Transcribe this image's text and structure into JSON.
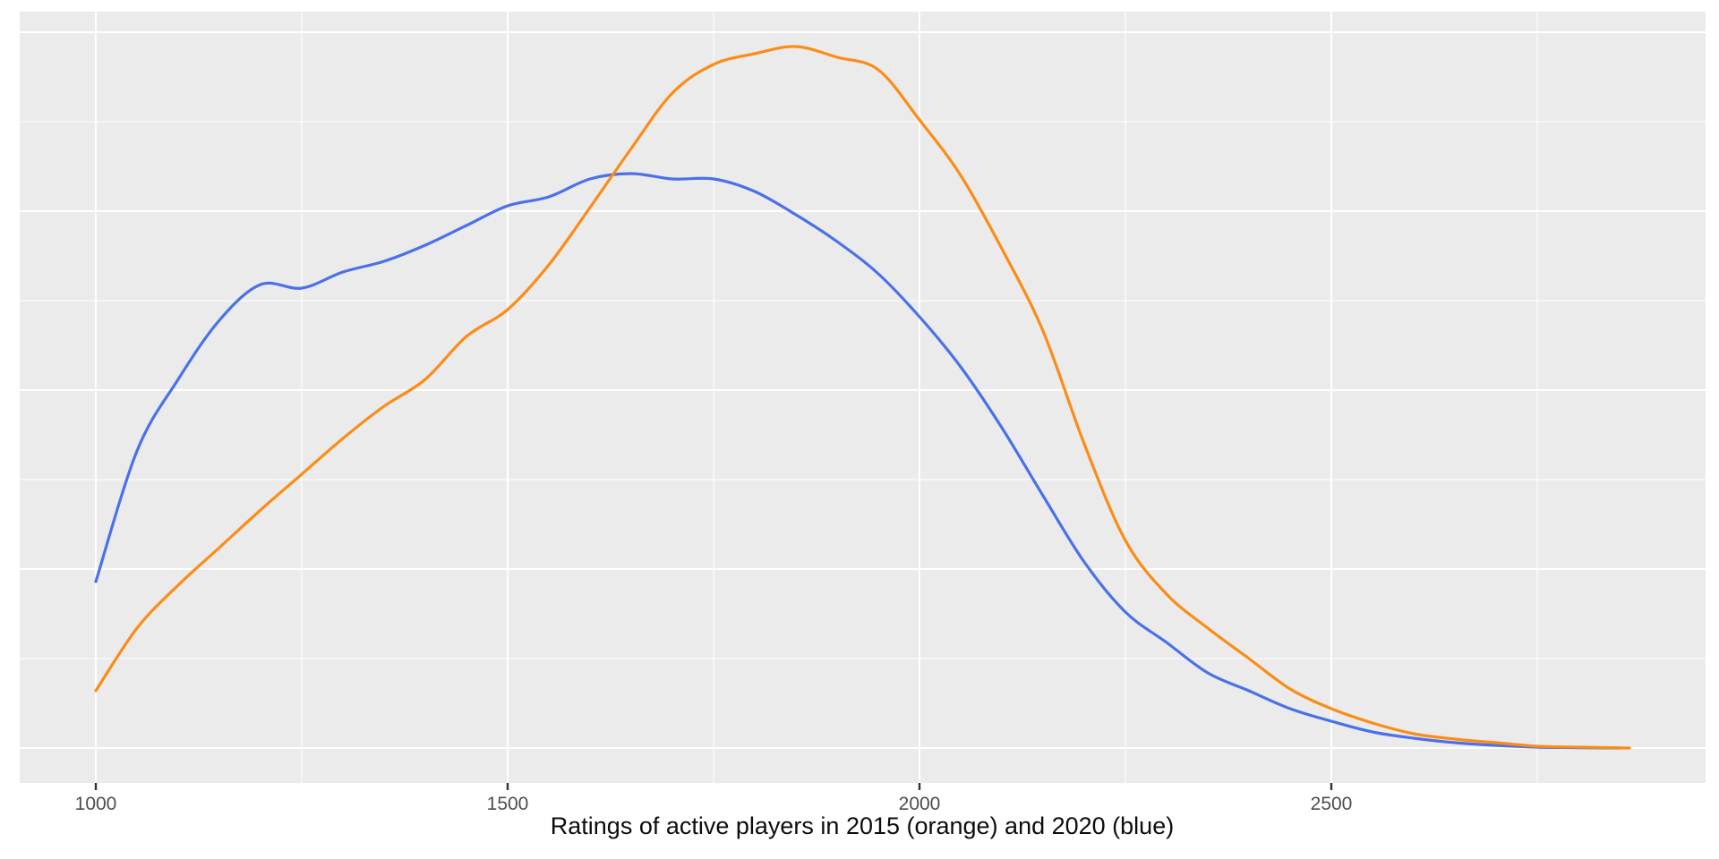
{
  "chart_data": {
    "type": "line",
    "title": "",
    "xlabel": "Ratings of active players in 2015 (orange) and 2020 (blue)",
    "ylabel": "",
    "x_ticks": [
      1000,
      1500,
      2000,
      2500
    ],
    "x_domain": [
      908,
      2955
    ],
    "y_domain": [
      -0.195,
      4.115
    ],
    "x_gridlines_minor": [
      1250,
      1750,
      2250,
      2750
    ],
    "y_gridlines_major": [
      0,
      1,
      2,
      3,
      4
    ],
    "y_gridlines_minor": [
      0.5,
      1.5,
      2.5,
      3.5
    ],
    "grid": true,
    "legend_position": "none",
    "y_units": "density, arbitrary units (1 = one major gridline; no y-axis labels shown)",
    "series": [
      {
        "name": "2015",
        "color": "#FB8C17",
        "x": [
          1000,
          1050,
          1100,
          1150,
          1200,
          1250,
          1300,
          1350,
          1400,
          1450,
          1500,
          1550,
          1600,
          1650,
          1700,
          1750,
          1800,
          1850,
          1900,
          1950,
          2000,
          2050,
          2100,
          2150,
          2200,
          2250,
          2300,
          2350,
          2400,
          2450,
          2500,
          2550,
          2600,
          2650,
          2700,
          2750,
          2800,
          2862
        ],
        "y": [
          0.32,
          0.67,
          0.91,
          1.12,
          1.33,
          1.53,
          1.73,
          1.91,
          2.06,
          2.3,
          2.45,
          2.7,
          3.02,
          3.35,
          3.66,
          3.82,
          3.88,
          3.92,
          3.86,
          3.79,
          3.51,
          3.2,
          2.79,
          2.33,
          1.7,
          1.16,
          0.86,
          0.67,
          0.5,
          0.33,
          0.22,
          0.14,
          0.08,
          0.05,
          0.03,
          0.01,
          0.005,
          0.0
        ]
      },
      {
        "name": "2020",
        "color": "#4B71E8",
        "x": [
          1000,
          1050,
          1100,
          1150,
          1200,
          1250,
          1300,
          1350,
          1400,
          1450,
          1500,
          1550,
          1600,
          1650,
          1700,
          1750,
          1800,
          1850,
          1900,
          1950,
          2000,
          2050,
          2100,
          2150,
          2200,
          2250,
          2300,
          2350,
          2400,
          2450,
          2500,
          2550,
          2600,
          2650,
          2700,
          2750,
          2800,
          2850
        ],
        "y": [
          0.93,
          1.66,
          2.06,
          2.39,
          2.59,
          2.57,
          2.66,
          2.72,
          2.81,
          2.92,
          3.03,
          3.08,
          3.18,
          3.21,
          3.18,
          3.18,
          3.11,
          2.98,
          2.83,
          2.65,
          2.41,
          2.13,
          1.79,
          1.41,
          1.04,
          0.76,
          0.59,
          0.42,
          0.32,
          0.22,
          0.15,
          0.09,
          0.055,
          0.03,
          0.015,
          0.005,
          0.002,
          0.0
        ]
      }
    ]
  },
  "styles": {
    "panel_bg": "#EBEBEB",
    "grid_color": "#FFFFFF",
    "tick_mark_color": "#333333",
    "tick_label_color": "#4D4D4D",
    "caption_color": "#0D0D0D"
  }
}
